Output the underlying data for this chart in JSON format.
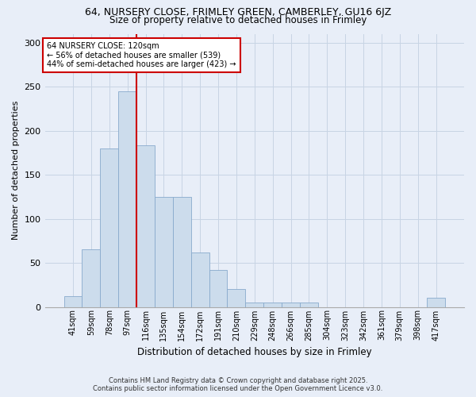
{
  "title1": "64, NURSERY CLOSE, FRIMLEY GREEN, CAMBERLEY, GU16 6JZ",
  "title2": "Size of property relative to detached houses in Frimley",
  "xlabel": "Distribution of detached houses by size in Frimley",
  "ylabel": "Number of detached properties",
  "categories": [
    "41sqm",
    "59sqm",
    "78sqm",
    "97sqm",
    "116sqm",
    "135sqm",
    "154sqm",
    "172sqm",
    "191sqm",
    "210sqm",
    "229sqm",
    "248sqm",
    "266sqm",
    "285sqm",
    "304sqm",
    "323sqm",
    "342sqm",
    "361sqm",
    "379sqm",
    "398sqm",
    "417sqm"
  ],
  "values": [
    12,
    65,
    180,
    245,
    183,
    125,
    125,
    62,
    42,
    20,
    5,
    5,
    5,
    5,
    0,
    0,
    0,
    0,
    0,
    0,
    10
  ],
  "bar_color": "#ccdcec",
  "bar_edge_color": "#88aacc",
  "grid_color": "#c8d4e4",
  "bg_color": "#e8eef8",
  "vline_x_idx": 4,
  "vline_color": "#cc0000",
  "annotation_text": "64 NURSERY CLOSE: 120sqm\n← 56% of detached houses are smaller (539)\n44% of semi-detached houses are larger (423) →",
  "annotation_box_color": "#ffffff",
  "annotation_box_edge": "#cc0000",
  "footnote1": "Contains HM Land Registry data © Crown copyright and database right 2025.",
  "footnote2": "Contains public sector information licensed under the Open Government Licence v3.0.",
  "ylim": [
    0,
    310
  ],
  "yticks": [
    0,
    50,
    100,
    150,
    200,
    250,
    300
  ]
}
